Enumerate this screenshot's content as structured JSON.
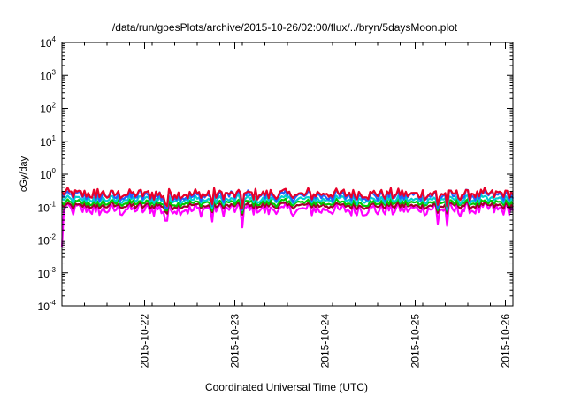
{
  "chart_data": {
    "type": "line",
    "title": "/data/run/goesPlots/archive/2015-10-26/02:00/flux/../bryn/5daysMoon.plot",
    "xlabel": "Coordinated Universal Time (UTC)",
    "ylabel": "cGy/day",
    "yscale": "log",
    "ylim": [
      0.0001,
      10000
    ],
    "xlim": [
      "2015-10-21 02:00",
      "2015-10-26 02:00"
    ],
    "x_tick_labels": [
      "2015-10-22",
      "2015-10-23",
      "2015-10-24",
      "2015-10-25",
      "2015-10-26"
    ],
    "y_tick_labels": [
      {
        "base": "10",
        "exp": "-4"
      },
      {
        "base": "10",
        "exp": "-3"
      },
      {
        "base": "10",
        "exp": "-2"
      },
      {
        "base": "10",
        "exp": "-1"
      },
      {
        "base": "10",
        "exp": "0"
      },
      {
        "base": "10",
        "exp": "1"
      },
      {
        "base": "10",
        "exp": "2"
      },
      {
        "base": "10",
        "exp": "3"
      },
      {
        "base": "10",
        "exp": "4"
      }
    ],
    "grid": false,
    "legend": "none",
    "series": [
      {
        "color": "#ff00ff",
        "level": 0.085,
        "variability": 0.18
      },
      {
        "color": "#a0002a",
        "level": 0.11,
        "variability": 0.1
      },
      {
        "color": "#00c800",
        "level": 0.135,
        "variability": 0.1
      },
      {
        "color": "#00d0d0",
        "level": 0.17,
        "variability": 0.12
      },
      {
        "color": "#2060ff",
        "level": 0.22,
        "variability": 0.16
      },
      {
        "color": "#e8002a",
        "level": 0.25,
        "variability": 0.16
      }
    ]
  }
}
